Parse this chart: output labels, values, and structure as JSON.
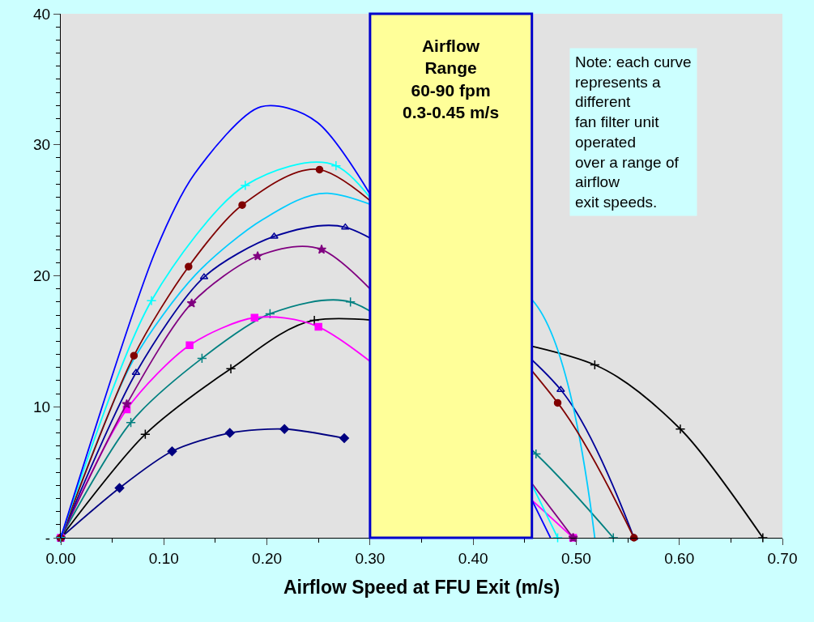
{
  "chart_data": {
    "type": "line",
    "xlabel": "Airflow Speed at FFU Exit (m/s)",
    "xlim": [
      0,
      0.7
    ],
    "xticks": [
      {
        "value": 0,
        "label": "0.00"
      },
      {
        "value": 0.1,
        "label": "0.10"
      },
      {
        "value": 0.2,
        "label": "0.20"
      },
      {
        "value": 0.3,
        "label": "0.30"
      },
      {
        "value": 0.4,
        "label": "0.40"
      },
      {
        "value": 0.5,
        "label": "0.50"
      },
      {
        "value": 0.6,
        "label": "0.60"
      },
      {
        "value": 0.7,
        "label": "0.70"
      }
    ],
    "ylim": [
      0,
      40
    ],
    "yticks": [
      {
        "value": 0,
        "label": "-"
      },
      10,
      20,
      30,
      40
    ],
    "line_style": "solid",
    "series": [
      {
        "color": "#000080",
        "marker": "diamond",
        "x": [
          0,
          0.057,
          0.108,
          0.164,
          0.217,
          0.275
        ],
        "values": [
          0,
          3.8,
          6.6,
          8.0,
          8.3,
          7.6
        ]
      },
      {
        "color": "#000000",
        "marker": "cross",
        "x": [
          0,
          0.082,
          0.165,
          0.246,
          0.518,
          0.601,
          0.681
        ],
        "values": [
          0,
          7.9,
          12.9,
          16.6,
          13.2,
          8.3,
          0
        ]
      },
      {
        "color": "#008080",
        "marker": "cross",
        "x": [
          0,
          0.068,
          0.137,
          0.203,
          0.281,
          0.461,
          0.536
        ],
        "values": [
          0,
          8.8,
          13.7,
          17.1,
          18.0,
          6.4,
          0
        ]
      },
      {
        "color": "#ff00ff",
        "marker": "square",
        "x": [
          0,
          0.064,
          0.125,
          0.188,
          0.25,
          0.497
        ],
        "values": [
          0,
          9.8,
          14.7,
          16.8,
          16.1,
          0
        ]
      },
      {
        "color": "#800080",
        "marker": "star",
        "x": [
          0,
          0.064,
          0.127,
          0.191,
          0.253,
          0.497
        ],
        "values": [
          0,
          10.2,
          17.9,
          21.5,
          22.0,
          0
        ]
      },
      {
        "color": "#000099",
        "marker": "triangle",
        "x": [
          0,
          0.073,
          0.139,
          0.207,
          0.276,
          0.485,
          0.556
        ],
        "values": [
          0,
          12.6,
          19.9,
          23.0,
          23.7,
          11.3,
          0
        ]
      },
      {
        "color": "#00ccff",
        "marker": "none",
        "x": [
          0,
          0.07,
          0.131,
          0.196,
          0.259,
          0.46,
          0.518
        ],
        "values": [
          0,
          13.5,
          20.1,
          24.3,
          26.3,
          17.9,
          0
        ]
      },
      {
        "color": "#800000",
        "marker": "circle",
        "x": [
          0,
          0.071,
          0.124,
          0.176,
          0.251,
          0.482,
          0.556
        ],
        "values": [
          0,
          13.9,
          20.7,
          25.4,
          28.1,
          10.3,
          0
        ]
      },
      {
        "color": "#00ffff",
        "marker": "cross",
        "x": [
          0,
          0.088,
          0.179,
          0.267,
          0.482
        ],
        "values": [
          0,
          18.1,
          26.9,
          28.4,
          0
        ]
      },
      {
        "color": "#0000ff",
        "marker": "none",
        "x": [
          0,
          0.092,
          0.13,
          0.194,
          0.249,
          0.475
        ],
        "values": [
          0,
          21.9,
          27.8,
          32.9,
          31.7,
          0
        ]
      }
    ],
    "bands": [
      {
        "axis": "x",
        "from": 0.3,
        "to": 0.457,
        "label": "Airflow\nRange\n60-90 fpm\n0.3-0.45 m/s",
        "color": "#ffff99"
      }
    ],
    "annotations": [
      "Note: each curve\nrepresents a\ndifferent\nfan filter unit\noperated\nover a range of\nairflow\nexit speeds."
    ]
  }
}
